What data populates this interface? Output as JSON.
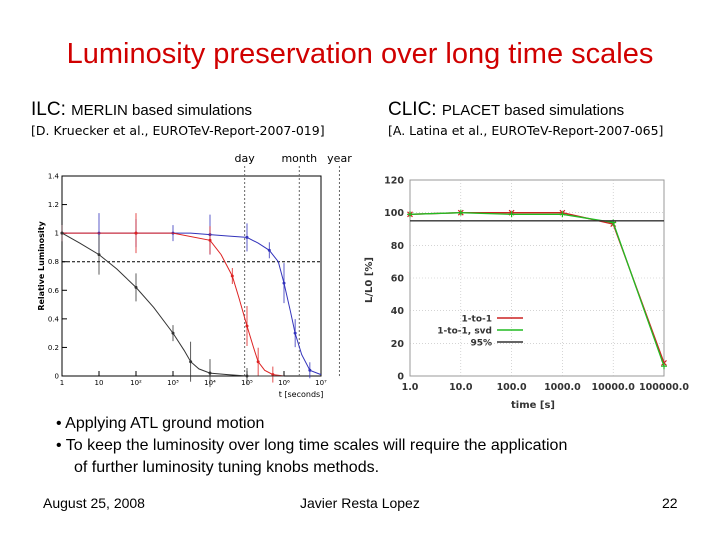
{
  "slide": {
    "title": "Luminosity preservation over long time scales",
    "ilc": {
      "label": "ILC:",
      "subtitle": "MERLIN based simulations",
      "reference": "[D. Kruecker et al., EUROTeV-Report-2007-019]"
    },
    "clic": {
      "label": "CLIC:",
      "subtitle": "PLACET based simulations",
      "reference": "[A. Latina et al., EUROTeV-Report-2007-065]"
    },
    "bullets": [
      "• Applying ATL ground motion",
      "• To keep the luminosity over long time scales will require the application",
      "of further luminosity tuning knobs methods."
    ],
    "footer": {
      "date": "August 25, 2008",
      "author": "Javier Resta Lopez",
      "page": "22"
    }
  },
  "chart_data": [
    {
      "type": "line",
      "xscale": "log",
      "xlabel": "t [seconds]",
      "ylabel": "Relative Luminosity",
      "xlim": [
        1,
        10000000
      ],
      "ylim": [
        0,
        1.4
      ],
      "x_ticks": [
        "1",
        "10",
        "10²",
        "10³",
        "10⁴",
        "10⁵",
        "10⁶",
        "10⁷"
      ],
      "y_ticks": [
        "0",
        "0.2",
        "0.4",
        "0.6",
        "0.8",
        "1",
        "1.2",
        "1.4"
      ],
      "time_markers": [
        {
          "label": "day",
          "x": 86400
        },
        {
          "label": "month",
          "x": 2592000
        },
        {
          "label": "year",
          "x": 31536000
        }
      ],
      "threshold": 0.8,
      "series": [
        {
          "color": "#3333bb",
          "x": [
            1,
            3,
            10,
            30,
            100,
            300,
            1000,
            3000,
            10000,
            30000,
            100000,
            200000,
            400000,
            700000,
            1000000,
            1500000,
            2000000,
            3000000,
            5000000,
            10000000
          ],
          "y": [
            1.0,
            1.0,
            1.0,
            1.0,
            1.0,
            1.0,
            1.0,
            1.0,
            0.99,
            0.98,
            0.97,
            0.93,
            0.88,
            0.8,
            0.65,
            0.45,
            0.3,
            0.15,
            0.04,
            0.01
          ]
        },
        {
          "color": "#dd2222",
          "x": [
            1,
            10,
            100,
            1000,
            10000,
            20000,
            40000,
            60000,
            100000,
            150000,
            200000,
            300000,
            500000,
            1000000
          ],
          "y": [
            1.0,
            1.0,
            1.0,
            1.0,
            0.95,
            0.85,
            0.7,
            0.55,
            0.35,
            0.2,
            0.1,
            0.04,
            0.01,
            0.0
          ]
        },
        {
          "color": "#333333",
          "x": [
            1,
            3,
            10,
            30,
            100,
            300,
            1000,
            2000,
            3000,
            5000,
            10000,
            30000,
            100000,
            1000000
          ],
          "y": [
            1.0,
            0.93,
            0.85,
            0.75,
            0.62,
            0.48,
            0.3,
            0.18,
            0.1,
            0.05,
            0.02,
            0.01,
            0.0,
            0.0
          ]
        }
      ]
    },
    {
      "type": "line",
      "xscale": "log",
      "xlabel": "time [s]",
      "ylabel": "L/L0 [%]",
      "xlim": [
        1,
        100000
      ],
      "ylim": [
        0,
        120
      ],
      "x_ticks": [
        "1.0",
        "10.0",
        "100.0",
        "1000.0",
        "10000.0",
        "100000.0"
      ],
      "y_ticks": [
        "0",
        "20",
        "40",
        "60",
        "80",
        "100",
        "120"
      ],
      "hline": 95,
      "series": [
        {
          "name": "1-to-1",
          "color": "#cc2222",
          "x": [
            1,
            10,
            100,
            1000,
            10000,
            100000
          ],
          "y": [
            99,
            100,
            100,
            100,
            93,
            8
          ]
        },
        {
          "name": "1-to-1, svd",
          "color": "#22bb22",
          "x": [
            1,
            10,
            100,
            1000,
            10000,
            100000
          ],
          "y": [
            99,
            100,
            99,
            99,
            94,
            6
          ]
        },
        {
          "name": "95%",
          "color": "#333333",
          "x": [
            1,
            100000
          ],
          "y": [
            95,
            95
          ]
        }
      ]
    }
  ]
}
